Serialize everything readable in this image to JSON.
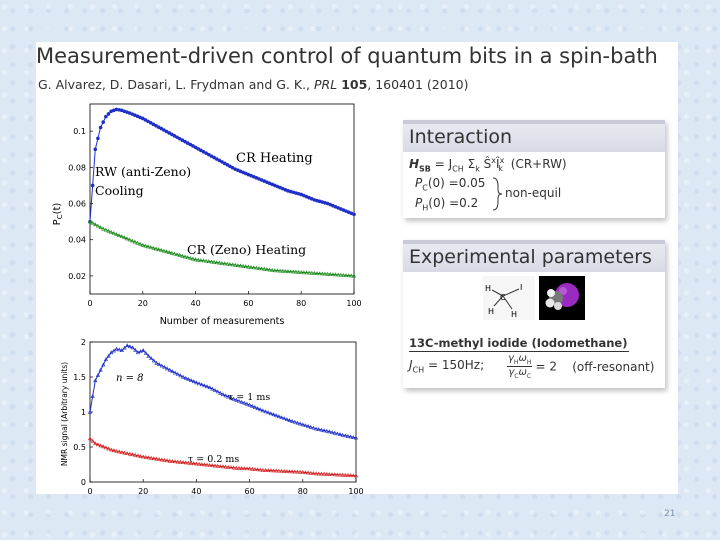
{
  "slide": {
    "title": "Measurement-driven control of quantum bits in a spin-bath",
    "authors_prefix": "G. Alvarez, D. Dasari, L. Frydman and G. K., ",
    "journal": "PRL",
    "volume": "105",
    "citation_rest": ", 160401 (2010)",
    "page_number": "21"
  },
  "interaction_box": {
    "heading": "Interaction",
    "hamiltonian_lhs": "H",
    "hamiltonian_lhs_sub": "SB",
    "hamiltonian_rhs": "= J",
    "hamiltonian_rhs_sub": "CH",
    "hamiltonian_sum": "Σ",
    "hamiltonian_sum_sub": "k",
    "hamiltonian_ops": "Ŝ",
    "hamiltonian_ops_sup": "x",
    "hamiltonian_ops2": "Î",
    "hamiltonian_ops2_sub": "k",
    "hamiltonian_ops2_sup": "x",
    "hamiltonian_label": "(CR+RW)",
    "pc_label": "P",
    "pc_sub": "C",
    "pc_value": "(0) =0.05",
    "ph_label": "P",
    "ph_sub": "H",
    "ph_value": "(0) =0.2",
    "brace_label": "non-equil"
  },
  "experimental_box": {
    "heading": "Experimental parameters",
    "molecule_name": "13C-methyl iodide (Iodomethane)",
    "j_label": "J",
    "j_sub": "CH",
    "j_value": "= 150Hz;",
    "ratio_num": "γ",
    "ratio_num_sub": "H",
    "ratio_num_w": "ω",
    "ratio_num_w_sub": "H",
    "ratio_den": "γ",
    "ratio_den_sub": "C",
    "ratio_den_w": "ω",
    "ratio_den_w_sub": "C",
    "ratio_value": "= 2",
    "ratio_note": "(off-resonant)",
    "struct_atoms": {
      "c": "C",
      "h1": "H",
      "h2": "H",
      "h3": "H",
      "i": "I"
    }
  },
  "chart_data": [
    {
      "type": "scatter",
      "xlabel": "Number of measurements",
      "ylabel": "P_C(t)",
      "xlim": [
        0,
        100
      ],
      "ylim": [
        0.01,
        0.115
      ],
      "xticks": [
        "0",
        "20",
        "40",
        "60",
        "80",
        "100"
      ],
      "yticks": [
        "0.02",
        "0.04",
        "0.06",
        "0.08",
        "0.1"
      ],
      "series": [
        {
          "color": "#1f2fc8",
          "x": [
            0,
            2,
            4,
            6,
            8,
            10,
            12,
            15,
            20,
            25,
            30,
            35,
            40,
            45,
            50,
            55,
            60,
            65,
            70,
            75,
            80,
            85,
            90,
            95,
            100
          ],
          "y": [
            0.05,
            0.09,
            0.102,
            0.108,
            0.111,
            0.112,
            0.1115,
            0.11,
            0.107,
            0.103,
            0.099,
            0.095,
            0.091,
            0.087,
            0.083,
            0.079,
            0.076,
            0.073,
            0.07,
            0.067,
            0.065,
            0.062,
            0.06,
            0.057,
            0.054
          ]
        },
        {
          "color": "#1a8a1a",
          "x": [
            0,
            5,
            10,
            15,
            20,
            25,
            30,
            35,
            40,
            45,
            50,
            55,
            60,
            65,
            70,
            75,
            80,
            85,
            90,
            95,
            100
          ],
          "y": [
            0.05,
            0.046,
            0.043,
            0.04,
            0.037,
            0.035,
            0.033,
            0.031,
            0.029,
            0.028,
            0.027,
            0.026,
            0.025,
            0.024,
            0.023,
            0.0225,
            0.022,
            0.0215,
            0.021,
            0.0205,
            0.02
          ]
        }
      ],
      "annotations": {
        "cr_heating": "CR Heating",
        "rw_line1": "RW (anti-Zeno)",
        "rw_line2": "Cooling",
        "cr_zeno": "CR (Zeno) Heating"
      }
    },
    {
      "type": "scatter",
      "ylabel": "NMR signal (Arbitrary units)",
      "xlim": [
        0,
        100
      ],
      "ylim": [
        0,
        2
      ],
      "xticks": [
        "0",
        "20",
        "40",
        "60",
        "80",
        "100"
      ],
      "yticks": [
        "0",
        "0.5",
        "1",
        "1.5",
        "2"
      ],
      "series": [
        {
          "color": "#1f2fc8",
          "x": [
            0,
            2,
            4,
            6,
            8,
            10,
            12,
            14,
            16,
            18,
            20,
            22,
            25,
            30,
            35,
            40,
            45,
            50,
            55,
            60,
            65,
            70,
            75,
            80,
            85,
            90,
            95,
            100
          ],
          "y": [
            1.0,
            1.45,
            1.6,
            1.75,
            1.85,
            1.9,
            1.88,
            1.95,
            1.92,
            1.85,
            1.88,
            1.8,
            1.7,
            1.6,
            1.5,
            1.42,
            1.35,
            1.25,
            1.17,
            1.1,
            1.02,
            0.95,
            0.88,
            0.82,
            0.76,
            0.72,
            0.67,
            0.63
          ]
        },
        {
          "color": "#d22020",
          "x": [
            0,
            2,
            4,
            6,
            8,
            10,
            15,
            20,
            25,
            30,
            35,
            40,
            45,
            50,
            55,
            60,
            65,
            70,
            75,
            80,
            85,
            90,
            95,
            100
          ],
          "y": [
            0.62,
            0.55,
            0.52,
            0.49,
            0.46,
            0.44,
            0.4,
            0.36,
            0.33,
            0.3,
            0.28,
            0.26,
            0.24,
            0.22,
            0.2,
            0.19,
            0.17,
            0.16,
            0.15,
            0.14,
            0.12,
            0.11,
            0.1,
            0.09
          ]
        }
      ],
      "annotations": {
        "n8": "n = 8",
        "tau1": "τ = 1 ms",
        "tau02": "τ = 0.2 ms"
      }
    }
  ]
}
